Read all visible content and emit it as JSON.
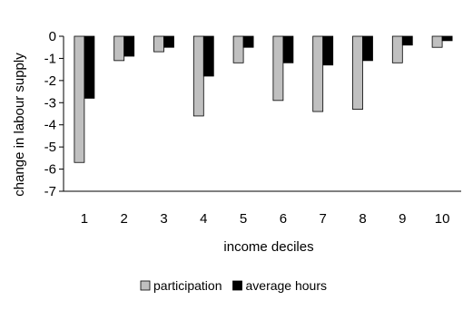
{
  "chart_data": {
    "type": "bar",
    "title": "",
    "xlabel": "income deciles",
    "ylabel": "change in labour supply",
    "categories": [
      "1",
      "2",
      "3",
      "4",
      "5",
      "6",
      "7",
      "8",
      "9",
      "10"
    ],
    "ylim": [
      -7,
      0
    ],
    "yticks": [
      "0",
      "-1",
      "-2",
      "-3",
      "-4",
      "-5",
      "-6",
      "-7"
    ],
    "grid": false,
    "legend_position": "bottom",
    "series": [
      {
        "name": "participation",
        "color": "#c0c0c0",
        "values": [
          -5.7,
          -1.1,
          -0.7,
          -3.6,
          -1.2,
          -2.9,
          -3.4,
          -3.3,
          -1.2,
          -0.5
        ]
      },
      {
        "name": "average hours",
        "color": "#000000",
        "values": [
          -2.8,
          -0.9,
          -0.5,
          -1.8,
          -0.5,
          -1.2,
          -1.3,
          -1.1,
          -0.4,
          -0.2
        ]
      }
    ]
  }
}
